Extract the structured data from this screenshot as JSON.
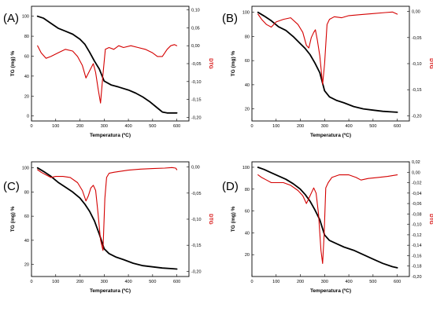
{
  "chart_data": [
    {
      "type": "line",
      "panel_label": "(A)",
      "xlabel": "Temperatura (ºC)",
      "ylabel": "TG (mg) %",
      "y2label": "DTG",
      "xlim": [
        0,
        650
      ],
      "xticks": [
        0,
        100,
        200,
        300,
        400,
        500,
        600
      ],
      "ylim": [
        -5,
        110
      ],
      "yticks": [
        0,
        20,
        40,
        60,
        80,
        100
      ],
      "y2lim": [
        -0.21,
        0.11
      ],
      "y2ticks": [
        -0.2,
        -0.15,
        -0.1,
        -0.05,
        0.0,
        0.05,
        0.1
      ],
      "y2tick_labels": [
        "-0,20",
        "-0,15",
        "-0,10",
        "-0,05",
        "0,00",
        "0,05",
        "0,10"
      ],
      "series": [
        {
          "axis": "left",
          "color": "#000000",
          "x": [
            25,
            50,
            80,
            110,
            140,
            170,
            200,
            220,
            240,
            260,
            280,
            300,
            330,
            360,
            400,
            430,
            460,
            490,
            520,
            540,
            560,
            580,
            600
          ],
          "y": [
            100,
            98,
            93,
            88,
            85,
            82,
            77,
            72,
            64,
            55,
            47,
            35,
            31,
            29,
            26,
            23,
            19,
            14,
            8,
            4,
            3,
            3,
            3
          ]
        },
        {
          "axis": "right",
          "color": "#d40000",
          "x": [
            25,
            40,
            60,
            80,
            110,
            140,
            170,
            190,
            210,
            225,
            240,
            255,
            265,
            275,
            285,
            295,
            305,
            320,
            340,
            360,
            380,
            410,
            440,
            470,
            500,
            520,
            540,
            560,
            575,
            590,
            600
          ],
          "y": [
            0.0,
            -0.02,
            -0.035,
            -0.03,
            -0.02,
            -0.01,
            -0.015,
            -0.03,
            -0.055,
            -0.09,
            -0.07,
            -0.05,
            -0.075,
            -0.12,
            -0.16,
            -0.08,
            -0.01,
            -0.005,
            -0.01,
            0.0,
            -0.005,
            0.0,
            -0.005,
            -0.01,
            -0.02,
            -0.03,
            -0.03,
            -0.01,
            0.0,
            0.003,
            0.0
          ]
        }
      ]
    },
    {
      "type": "line",
      "panel_label": "(B)",
      "xlabel": "Temperatura (ºC)",
      "ylabel": "TG (mg) %",
      "y2label": "DTG",
      "xlim": [
        0,
        650
      ],
      "xticks": [
        0,
        100,
        200,
        300,
        400,
        500,
        600
      ],
      "ylim": [
        10,
        105
      ],
      "yticks": [
        20,
        40,
        60,
        80,
        100
      ],
      "y2lim": [
        -0.21,
        0.01
      ],
      "y2ticks": [
        -0.2,
        -0.15,
        -0.1,
        -0.05,
        0.0
      ],
      "y2tick_labels": [
        "-0,20",
        "-0,15",
        "-0,10",
        "-0,05",
        "0,00"
      ],
      "series": [
        {
          "axis": "left",
          "color": "#000000",
          "x": [
            25,
            50,
            80,
            110,
            140,
            170,
            200,
            220,
            240,
            260,
            280,
            300,
            320,
            350,
            380,
            420,
            460,
            500,
            540,
            580,
            600
          ],
          "y": [
            100,
            97,
            93,
            88,
            85,
            80,
            74,
            70,
            65,
            58,
            50,
            35,
            30,
            27,
            25,
            22,
            20,
            19,
            18,
            17.5,
            17.2
          ]
        },
        {
          "axis": "right",
          "color": "#d40000",
          "x": [
            25,
            40,
            60,
            80,
            100,
            130,
            160,
            190,
            210,
            225,
            235,
            245,
            255,
            262,
            270,
            280,
            292,
            300,
            310,
            320,
            340,
            370,
            400,
            450,
            500,
            550,
            580,
            600
          ],
          "y": [
            -0.005,
            -0.015,
            -0.025,
            -0.03,
            -0.02,
            -0.015,
            -0.012,
            -0.025,
            -0.04,
            -0.065,
            -0.07,
            -0.05,
            -0.04,
            -0.035,
            -0.055,
            -0.085,
            -0.14,
            -0.1,
            -0.025,
            -0.015,
            -0.01,
            -0.012,
            -0.008,
            -0.006,
            -0.004,
            -0.002,
            -0.001,
            -0.005
          ]
        }
      ]
    },
    {
      "type": "line",
      "panel_label": "(C)",
      "xlabel": "Temperatura (ºC)",
      "ylabel": "TG (mg) %",
      "y2label": "DTG",
      "xlim": [
        0,
        650
      ],
      "xticks": [
        0,
        100,
        200,
        300,
        400,
        500,
        600
      ],
      "ylim": [
        10,
        105
      ],
      "yticks": [
        20,
        40,
        60,
        80,
        100
      ],
      "y2lim": [
        -0.21,
        0.01
      ],
      "y2ticks": [
        -0.2,
        -0.15,
        -0.1,
        -0.05,
        0.0
      ],
      "y2tick_labels": [
        "-0,20",
        "-0,15",
        "-0,10",
        "-0,05",
        "0,00"
      ],
      "series": [
        {
          "axis": "left",
          "color": "#000000",
          "x": [
            25,
            50,
            80,
            110,
            140,
            170,
            200,
            220,
            240,
            260,
            280,
            300,
            320,
            350,
            380,
            420,
            460,
            500,
            540,
            580,
            600
          ],
          "y": [
            100,
            97,
            93,
            88,
            84,
            80,
            75,
            70,
            64,
            56,
            45,
            33,
            29,
            26,
            24,
            21,
            19,
            18,
            17,
            16.5,
            16.2
          ]
        },
        {
          "axis": "right",
          "color": "#d40000",
          "x": [
            25,
            40,
            60,
            80,
            100,
            130,
            160,
            190,
            210,
            225,
            235,
            245,
            255,
            265,
            275,
            285,
            295,
            303,
            310,
            320,
            340,
            370,
            400,
            450,
            500,
            550,
            580,
            595,
            600
          ],
          "y": [
            -0.005,
            -0.01,
            -0.015,
            -0.02,
            -0.018,
            -0.018,
            -0.02,
            -0.03,
            -0.045,
            -0.065,
            -0.055,
            -0.04,
            -0.035,
            -0.045,
            -0.09,
            -0.14,
            -0.16,
            -0.06,
            -0.02,
            -0.012,
            -0.01,
            -0.008,
            -0.006,
            -0.004,
            -0.003,
            -0.002,
            -0.001,
            -0.002,
            -0.005
          ]
        }
      ]
    },
    {
      "type": "line",
      "panel_label": "(D)",
      "xlabel": "Temperatura (ºC)",
      "ylabel": "TG (mg) %",
      "y2label": "DTG",
      "xlim": [
        0,
        650
      ],
      "xticks": [
        0,
        100,
        200,
        300,
        400,
        500,
        600
      ],
      "ylim": [
        0,
        105
      ],
      "yticks": [
        20,
        40,
        60,
        80,
        100
      ],
      "y2lim": [
        -0.2,
        0.02
      ],
      "y2ticks": [
        -0.2,
        -0.18,
        -0.16,
        -0.14,
        -0.12,
        -0.1,
        -0.08,
        -0.06,
        -0.04,
        -0.02,
        0.0,
        0.02
      ],
      "y2tick_labels": [
        "-0,20",
        "-0,18",
        "-0,16",
        "-0,14",
        "-0,12",
        "-0,10",
        "-0,08",
        "-0,06",
        "-0,04",
        "-0,02",
        "0,00",
        "0,02"
      ],
      "series": [
        {
          "axis": "left",
          "color": "#000000",
          "x": [
            25,
            50,
            80,
            110,
            140,
            170,
            200,
            220,
            240,
            260,
            280,
            300,
            320,
            350,
            380,
            420,
            460,
            500,
            540,
            580,
            600
          ],
          "y": [
            100,
            98,
            95,
            92,
            89,
            85,
            80,
            75,
            69,
            61,
            52,
            38,
            33,
            30,
            27,
            24,
            20,
            16,
            12,
            9,
            8
          ]
        },
        {
          "axis": "right",
          "color": "#d40000",
          "x": [
            25,
            40,
            60,
            80,
            100,
            130,
            160,
            190,
            210,
            225,
            235,
            245,
            255,
            265,
            275,
            285,
            292,
            298,
            305,
            315,
            330,
            360,
            400,
            430,
            450,
            480,
            520,
            560,
            600
          ],
          "y": [
            -0.005,
            -0.01,
            -0.015,
            -0.02,
            -0.02,
            -0.02,
            -0.025,
            -0.035,
            -0.045,
            -0.06,
            -0.05,
            -0.04,
            -0.03,
            -0.04,
            -0.08,
            -0.15,
            -0.175,
            -0.12,
            -0.03,
            -0.02,
            -0.01,
            -0.005,
            -0.005,
            -0.01,
            -0.015,
            -0.012,
            -0.01,
            -0.008,
            -0.005
          ]
        }
      ]
    }
  ]
}
